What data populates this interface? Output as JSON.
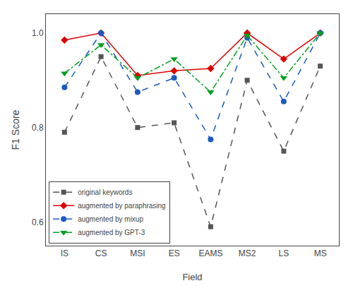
{
  "chart_data": {
    "type": "line",
    "xlabel": "Field",
    "ylabel": "F1 Score",
    "categories": [
      "IS",
      "CS",
      "MSI",
      "ES",
      "EAMS",
      "MS2",
      "LS",
      "MS"
    ],
    "series": [
      {
        "name": "original keywords",
        "color": "#555555",
        "marker": "square",
        "line_style": "dashed",
        "values": [
          0.79,
          0.95,
          0.8,
          0.81,
          0.59,
          0.9,
          0.75,
          0.93
        ]
      },
      {
        "name": "augmented by paraphrasing",
        "color": "#dd0000",
        "marker": "diamond",
        "line_style": "solid",
        "values": [
          0.985,
          1.0,
          0.91,
          0.92,
          0.925,
          1.0,
          0.945,
          1.0
        ]
      },
      {
        "name": "augmented by mixup",
        "color": "#1a5bbf",
        "marker": "circle",
        "line_style": "dashed",
        "values": [
          0.885,
          1.0,
          0.875,
          0.905,
          0.775,
          0.99,
          0.855,
          1.0
        ]
      },
      {
        "name": "augmented by GPT-3",
        "color": "#00a020",
        "marker": "triangle-down",
        "line_style": "dashdot",
        "values": [
          0.915,
          0.975,
          0.905,
          0.945,
          0.875,
          0.995,
          0.905,
          1.0
        ]
      }
    ],
    "ylim": [
      0.55,
      1.04
    ],
    "yticks": [
      0.6,
      0.8,
      {
        "value": 1.0,
        "label": "1.0"
      }
    ],
    "grid": false,
    "legend": "lower left"
  }
}
